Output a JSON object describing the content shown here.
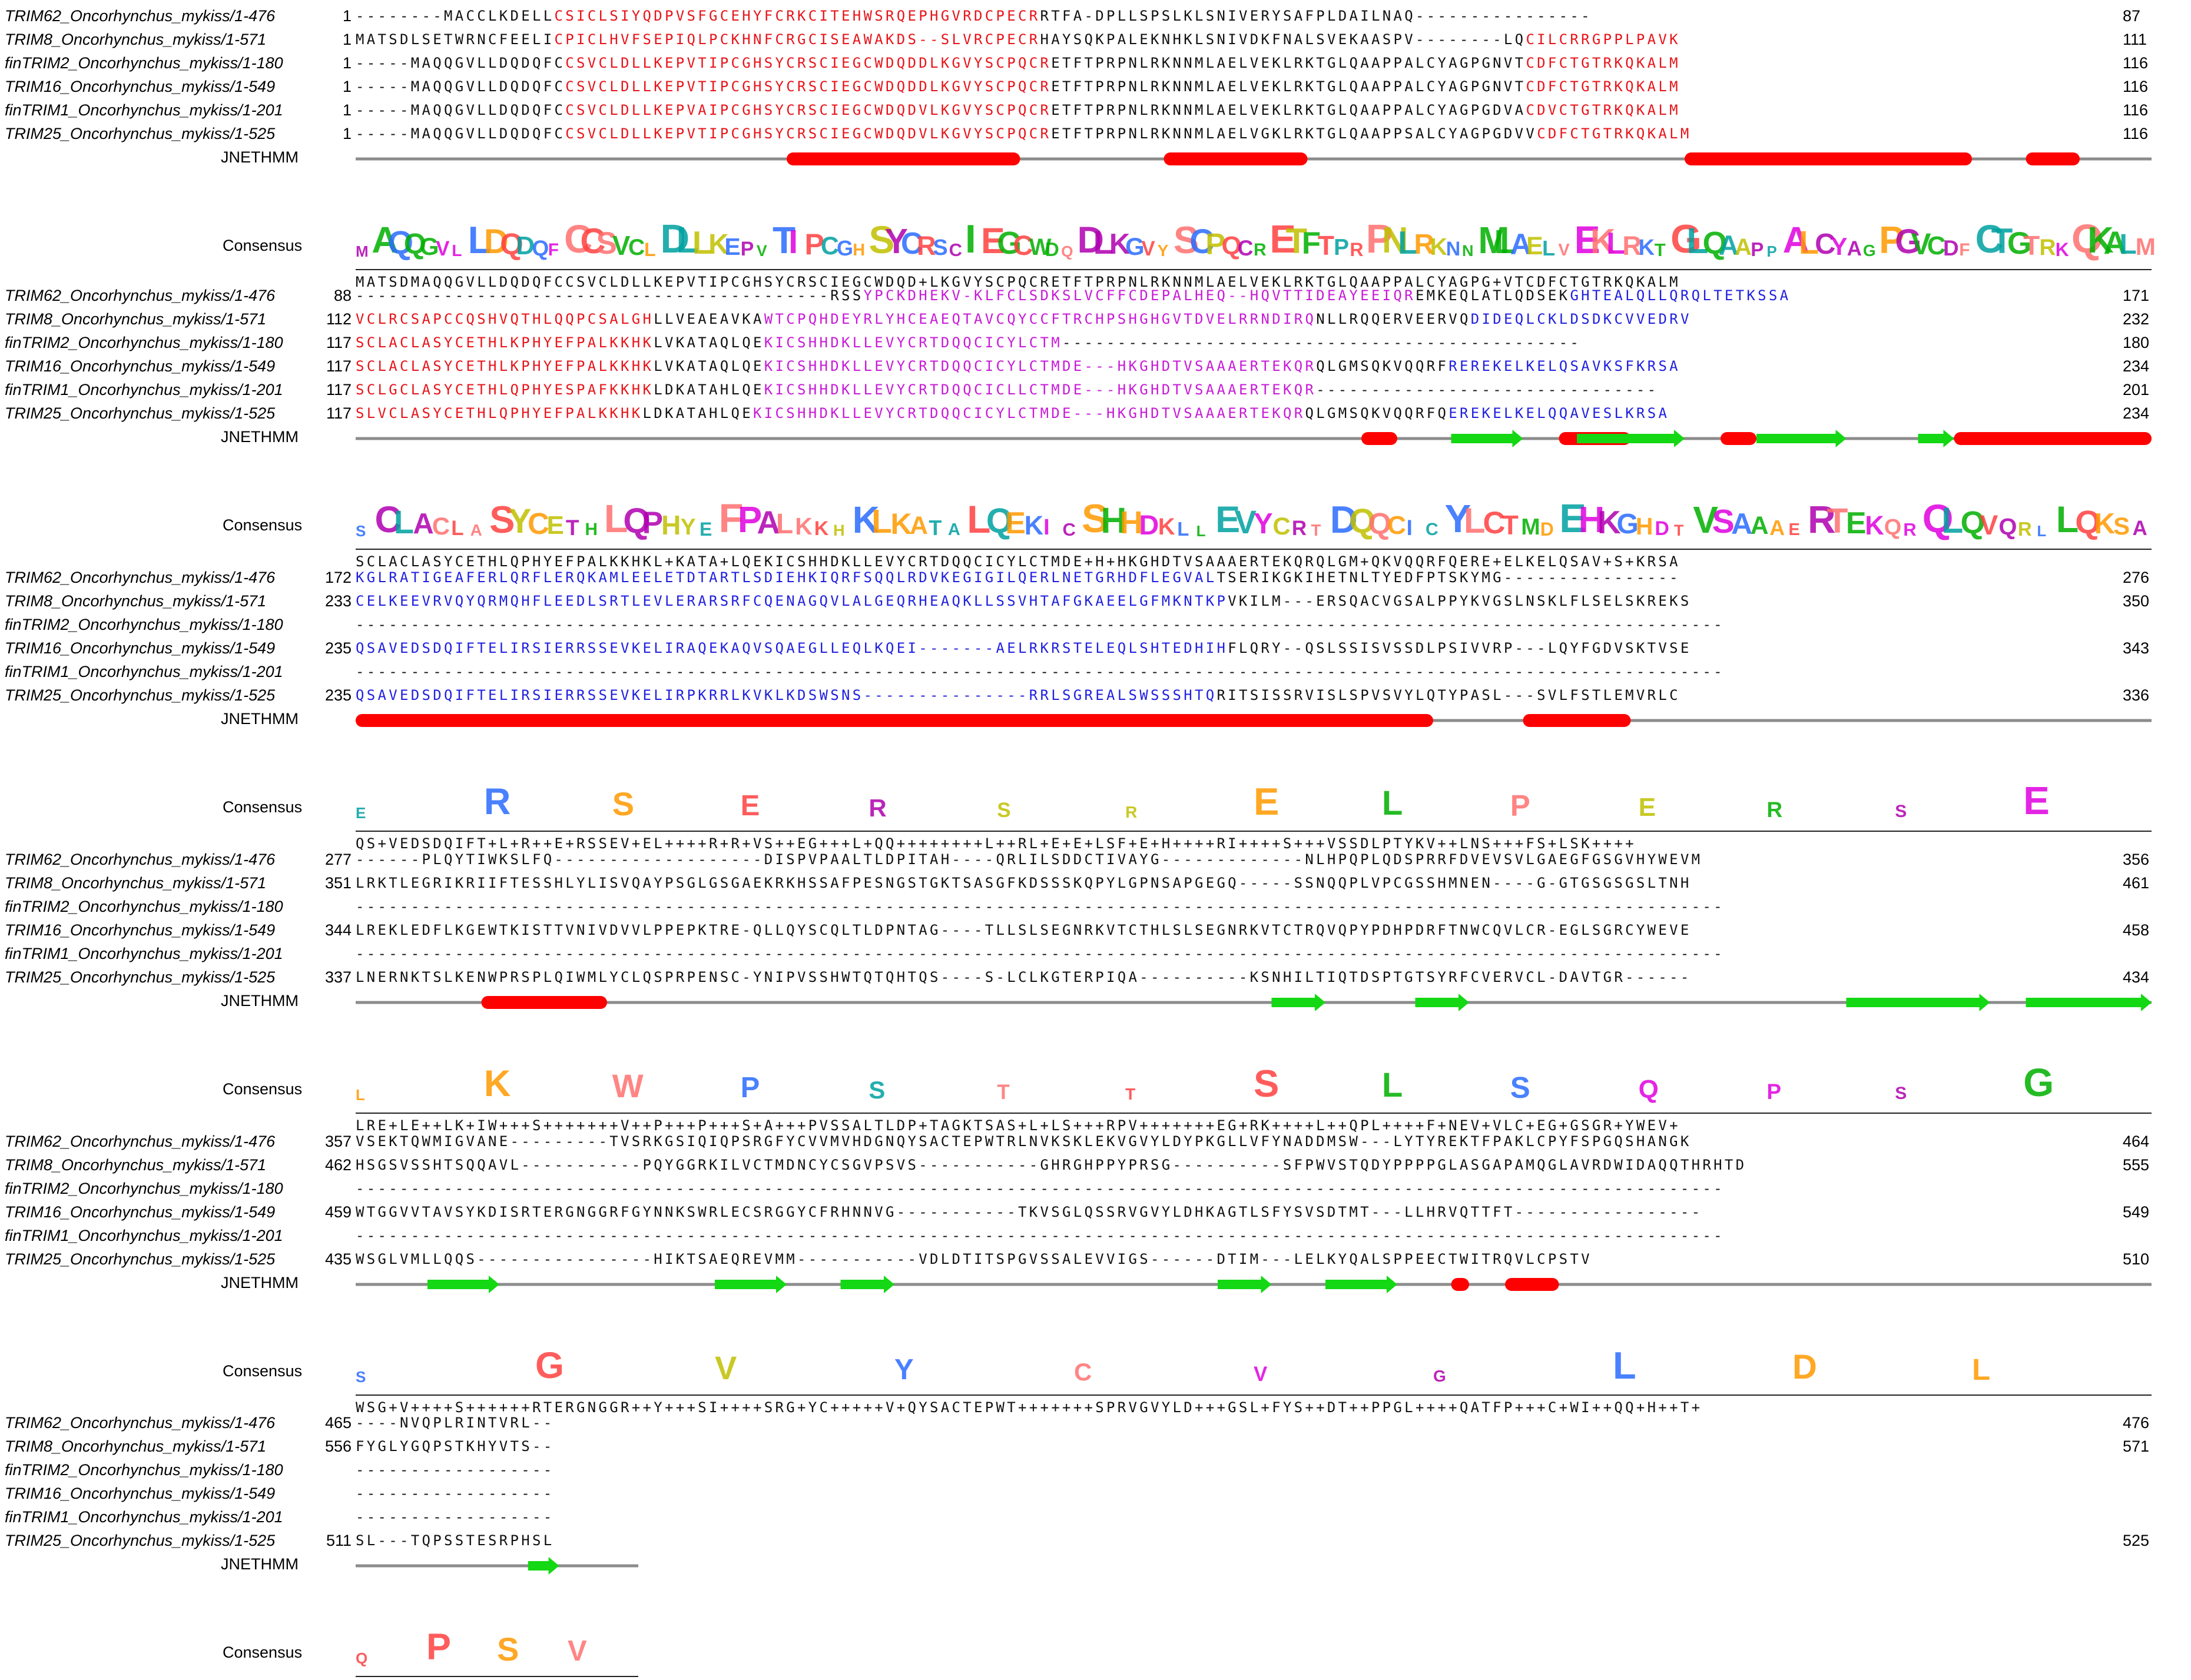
{
  "labels": {
    "prediction": "JNETHMM",
    "consensus": "Consensus"
  },
  "colors": {
    "zinc_finger": "#e8141a",
    "coiled_coil_box": "#c81ad8",
    "coiled_coil": "#2020e0",
    "default": "#111111",
    "helix": "#ff0000",
    "strand": "#13d813",
    "line": "#8c8c8c"
  },
  "blocks": [
    {
      "rows": [
        {
          "name": "TRIM62_Oncorhynchus_mykiss/1-476",
          "start": "1",
          "end": "87",
          "segs": [
            {
              "t": "--------MACCLKDELL",
              "c": "default"
            },
            {
              "t": "CSICLSIYQDPVSFGCEHYFCRKCITEHWSRQEPHGVRDCPECR",
              "c": "zinc_finger"
            },
            {
              "t": "RTFA-DPLLSPSLKLSNIVERYSAFPLDAILNAQ----------------",
              "c": "default"
            }
          ]
        },
        {
          "name": "TRIM8_Oncorhynchus_mykiss/1-571",
          "start": "1",
          "end": "111",
          "segs": [
            {
              "t": "MATSDLSETWRNCFEELI",
              "c": "default"
            },
            {
              "t": "CPICLHVFSEPIQLPCKHNFCRGCISEAWAKDS--SLVRCPECR",
              "c": "zinc_finger"
            },
            {
              "t": "HAYSQKPALEKNHKLSNIVDKFNALSVEKAASPV--------LQ",
              "c": "default"
            },
            {
              "t": "CILCRRGPPLPAVK",
              "c": "zinc_finger"
            }
          ]
        },
        {
          "name": "finTRIM2_Oncorhynchus_mykiss/1-180",
          "start": "1",
          "end": "116",
          "segs": [
            {
              "t": "-----MAQQGVLLDQDQFC",
              "c": "default"
            },
            {
              "t": "CSVCLDLLKEPVTIPCGHSYCRSCIEGCWDQDDLKGVYSCPQCR",
              "c": "zinc_finger"
            },
            {
              "t": "ETFTPRPNLRKNNMLAELVEKLRKTGLQAAPPALCYAGPGNVT",
              "c": "default"
            },
            {
              "t": "CDFCTGTRKQKALM",
              "c": "zinc_finger"
            }
          ]
        },
        {
          "name": "TRIM16_Oncorhynchus_mykiss/1-549",
          "start": "1",
          "end": "116",
          "segs": [
            {
              "t": "-----MAQQGVLLDQDQFC",
              "c": "default"
            },
            {
              "t": "CSVCLDLLKEPVTIPCGHSYCRSCIEGCWDQDDLKGVYSCPQCR",
              "c": "zinc_finger"
            },
            {
              "t": "ETFTPRPNLRKNNMLAELVEKLRKTGLQAAPPALCYAGPGNVT",
              "c": "default"
            },
            {
              "t": "CDFCTGTRKQKALM",
              "c": "zinc_finger"
            }
          ]
        },
        {
          "name": "finTRIM1_Oncorhynchus_mykiss/1-201",
          "start": "1",
          "end": "116",
          "segs": [
            {
              "t": "-----MAQQGVLLDQDQFC",
              "c": "default"
            },
            {
              "t": "CSVCLDLLKEPVAIPCGHSYCRSCIEGCWDQDVLKGVYSCPQCR",
              "c": "zinc_finger"
            },
            {
              "t": "ETFTPRPNLRKNNMLAELVEKLRKTGLQAAPPALCYAGPGDVA",
              "c": "default"
            },
            {
              "t": "CDVCTGTRKQKALM",
              "c": "zinc_finger"
            }
          ]
        },
        {
          "name": "TRIM25_Oncorhynchus_mykiss/1-525",
          "start": "1",
          "end": "116",
          "segs": [
            {
              "t": "-----MAQQGVLLDQDQFC",
              "c": "default"
            },
            {
              "t": "CSVCLDLLKEPVTIPCGHSYCRSCIEGCWDQDVLKGVYSCPQCR",
              "c": "zinc_finger"
            },
            {
              "t": "ETFTPRPNLRKNNMLAELVGKLRKTGLQAAPPSALCYAGPGDVV",
              "c": "default"
            },
            {
              "t": "CDFCTGTRKQKALM",
              "c": "zinc_finger"
            }
          ]
        }
      ],
      "consensus_seq": "MATSDMAQQGVLLDQDQFCCSVCLDLLKEPVTIPCGHSYCRSCIEGCWDQD+LKGVYSCPQCRETFTPRPNLRKNNMLAELVEKLRKTGLQAAPPALCYAGPG+VTCDFCTGTRKQKALM",
      "logo": "MAQQGVLLDQDQFCCSVCLDLLKEPVTIPCGHSYCRSCIEGCWDQDLKGVYSCPQCRETFTPRPNLRKNNMLAELVEKLRKTGLQAAPPALCYAGPGVCDFCTGTRKQKALM",
      "helices": [
        [
          0.24,
          0.37
        ],
        [
          0.45,
          0.53
        ],
        [
          0.74,
          0.9
        ],
        [
          0.93,
          0.96
        ]
      ],
      "strands": []
    },
    {
      "rows": [
        {
          "name": "TRIM62_Oncorhynchus_mykiss/1-476",
          "start": "88",
          "end": "171",
          "segs": [
            {
              "t": "-------------------------------------------RSS",
              "c": "default"
            },
            {
              "t": "YPCKDHEKV-KLFCLSDKSLVCFFCDEPALHEQ--HQVTTIDEAYEEIQR",
              "c": "coiled_coil_box"
            },
            {
              "t": "EMKEQLATLQDSEK",
              "c": "default"
            },
            {
              "t": "GHTEALQLLQRQLTETKSSA",
              "c": "coiled_coil"
            }
          ]
        },
        {
          "name": "TRIM8_Oncorhynchus_mykiss/1-571",
          "start": "112",
          "end": "232",
          "segs": [
            {
              "t": "VCLRCSAPCCQSHVQTHLQQPCSALGH",
              "c": "zinc_finger"
            },
            {
              "t": "LLVEAEAVKA",
              "c": "default"
            },
            {
              "t": "WTCPQHDEYRLYHCEAEQTAVCQYCCFTRCHPSHGHGVTDVELRRNDIRQ",
              "c": "coiled_coil_box"
            },
            {
              "t": "NLLRQQERVEERVQ",
              "c": "default"
            },
            {
              "t": "DIDEQLCKLDSDKCVVEDRV",
              "c": "coiled_coil"
            }
          ]
        },
        {
          "name": "finTRIM2_Oncorhynchus_mykiss/1-180",
          "start": "117",
          "end": "180",
          "segs": [
            {
              "t": "SCLACLASYCETHLKPHYEFPALKKHK",
              "c": "zinc_finger"
            },
            {
              "t": "LVKATAQLQE",
              "c": "default"
            },
            {
              "t": "KICSHHDKLLEVYCRTDQQCICYLCTM",
              "c": "coiled_coil_box"
            },
            {
              "t": "-----------------------------------------------",
              "c": "default"
            }
          ]
        },
        {
          "name": "TRIM16_Oncorhynchus_mykiss/1-549",
          "start": "117",
          "end": "234",
          "segs": [
            {
              "t": "SCLACLASYCETHLKPHYEFPALKKHK",
              "c": "zinc_finger"
            },
            {
              "t": "LVKATAQLQE",
              "c": "default"
            },
            {
              "t": "KICSHHDKLLEVYCRTDQQCICYLCTMDE---HKGHDTVSAAAERTEKQR",
              "c": "coiled_coil_box"
            },
            {
              "t": "QLGMSQKVQQRF",
              "c": "default"
            },
            {
              "t": "REREKELKELQSAVKSFKRSA",
              "c": "coiled_coil"
            }
          ]
        },
        {
          "name": "finTRIM1_Oncorhynchus_mykiss/1-201",
          "start": "117",
          "end": "201",
          "segs": [
            {
              "t": "SCLGCLASYCETHLQPHYESPAFKKHK",
              "c": "zinc_finger"
            },
            {
              "t": "LDKATAHLQE",
              "c": "default"
            },
            {
              "t": "KICSHHDKLLEVYCRTDQQCICLLCTMDE---HKGHDTVSAAAERTEKQR",
              "c": "coiled_coil_box"
            },
            {
              "t": "-------------------------------",
              "c": "default"
            }
          ]
        },
        {
          "name": "TRIM25_Oncorhynchus_mykiss/1-525",
          "start": "117",
          "end": "234",
          "segs": [
            {
              "t": "SLVCLASYCETHLQPHYEFPALKKHK",
              "c": "zinc_finger"
            },
            {
              "t": "LDKATAHLQE",
              "c": "default"
            },
            {
              "t": "KICSHHDKLLEVYCRTDQQCICYLCTMDE---HKGHDTVSAAAERTEKQR",
              "c": "coiled_coil_box"
            },
            {
              "t": "QLGMSQKVQQRFQ",
              "c": "default"
            },
            {
              "t": "EREKELKELQQAVESLKRSA",
              "c": "coiled_coil"
            }
          ]
        }
      ],
      "consensus_seq": "SCLACLASYCETHLQPHYEFPALKKHKL+KATA+LQEKICSHHDKLLEVYCRTDQQCICYLCTMDE+H+HKGHDTVSAAAERTEKQRQLGM+QKVQQRFQERE+ELKELQSAV+S+KRSA",
      "logo": "SCLACLASYCETHLQPHYEFPALKKHKLKATALQEKICSHHDKLLEVYCRTDQQCICYLCTMDEHKGHDTVSAAAERTEKQRQLQVQRLLQKSA",
      "helices": [
        [
          0.56,
          0.58
        ],
        [
          0.67,
          0.71
        ],
        [
          0.76,
          0.78
        ],
        [
          0.89,
          1.0
        ]
      ],
      "strands": [
        [
          0.61,
          0.65
        ],
        [
          0.68,
          0.74
        ],
        [
          0.78,
          0.83
        ],
        [
          0.87,
          0.89
        ]
      ]
    },
    {
      "rows": [
        {
          "name": "TRIM62_Oncorhynchus_mykiss/1-476",
          "start": "172",
          "end": "276",
          "segs": [
            {
              "t": "KGLRATIGEAFERLQRFLERQKAMLEELETDTARTLSDIEHKIQRFSQQLRDVKEGIGILQERLNETGRHDFLEGVAL",
              "c": "coiled_coil"
            },
            {
              "t": "TSERIKGKIHETNLTYEDFPTSKYMG----------------",
              "c": "default"
            }
          ]
        },
        {
          "name": "TRIM8_Oncorhynchus_mykiss/1-571",
          "start": "233",
          "end": "350",
          "segs": [
            {
              "t": "CELKEEVRVQYQRMQHFLEEDLSRTLEVLERARSRFCQENAGQVLALGEQRHEAQKLLSSVHTAFGKAEELGFMKNTKP",
              "c": "coiled_coil"
            },
            {
              "t": "VKILM---ERSQACVGSALPPYKVGSLNSKLFLSELSKREKS",
              "c": "default"
            }
          ]
        },
        {
          "name": "finTRIM2_Oncorhynchus_mykiss/1-180",
          "start": "",
          "end": "",
          "segs": [
            {
              "t": "----------------------------------------------------------------------------------------------------------------------------",
              "c": "default"
            }
          ]
        },
        {
          "name": "TRIM16_Oncorhynchus_mykiss/1-549",
          "start": "235",
          "end": "343",
          "segs": [
            {
              "t": "QSAVEDSDQIFTELIRSIERRSSEVKELIRAQEKAQVSQAEGLLEQLKQEI-------AELRKRSTELEQLSHTEDHIH",
              "c": "coiled_coil"
            },
            {
              "t": "FLQRY--QSLSSISVSSDLPSIVVRP---LQYFGDVSKTVSE",
              "c": "default"
            }
          ]
        },
        {
          "name": "finTRIM1_Oncorhynchus_mykiss/1-201",
          "start": "",
          "end": "",
          "segs": [
            {
              "t": "----------------------------------------------------------------------------------------------------------------------------",
              "c": "default"
            }
          ]
        },
        {
          "name": "TRIM25_Oncorhynchus_mykiss/1-525",
          "start": "235",
          "end": "336",
          "segs": [
            {
              "t": "QSAVEDSDQIFTELIRSIERRSSEVKELIRPKRRLKVKLKDSWSNS---------------RRLSGREALSWSSSHTQ",
              "c": "coiled_coil"
            },
            {
              "t": "RITSISSRVISLSPVSVYLQTYPASL---SVLFSTLEMVRLC",
              "c": "default"
            }
          ]
        }
      ],
      "consensus_seq": "QS+VEDSDQIFT+L+R++E+RSSEV+EL++++R+R+VS++EG+++L+QQ++++++++L++RL+E+E+LSF+E+H++++RI++++S+++VSSDLPTYKV++LNS+++FS+LSK++++",
      "logo": "ERSERSRELPERSE",
      "helices": [
        [
          0.0,
          0.6
        ],
        [
          0.65,
          0.71
        ]
      ],
      "strands": []
    },
    {
      "rows": [
        {
          "name": "TRIM62_Oncorhynchus_mykiss/1-476",
          "start": "277",
          "end": "356",
          "segs": [
            {
              "t": "------PLQYTIWKSLFQ-------------------DISPVPAALTLDPITAH----QRLILSDDCTIVAYG-------------NLHPQPLQDSPRRFDVEVSVLGAEGFGSGVHYWEVM",
              "c": "default"
            }
          ]
        },
        {
          "name": "TRIM8_Oncorhynchus_mykiss/1-571",
          "start": "351",
          "end": "461",
          "segs": [
            {
              "t": "LRKTLEGRIKRIIFTESSHLYLISVQAYPSGLGSGAEKRKHSSAFPESNGSTGKTSASGFKDSSSKQPYLGPNSAPGEGQ-----SSNQQPLVPCGSSHMNEN----G-GTGSGSGSLTNH",
              "c": "default"
            }
          ]
        },
        {
          "name": "finTRIM2_Oncorhynchus_mykiss/1-180",
          "start": "",
          "end": "",
          "segs": [
            {
              "t": "----------------------------------------------------------------------------------------------------------------------------",
              "c": "default"
            }
          ]
        },
        {
          "name": "TRIM16_Oncorhynchus_mykiss/1-549",
          "start": "344",
          "end": "458",
          "segs": [
            {
              "t": "LREKLEDFLKGEWTKISTTVNIVDVVLPPEPKTRE-QLLQYSCQLTLDPNTAG----TLLSLSEGNRKVTCTHLSLSEGNRKVTCTRQVQPYPDHPDRFTNWCQVLCR-EGLSGRCYWEVE",
              "c": "default"
            }
          ]
        },
        {
          "name": "finTRIM1_Oncorhynchus_mykiss/1-201",
          "start": "",
          "end": "",
          "segs": [
            {
              "t": "----------------------------------------------------------------------------------------------------------------------------",
              "c": "default"
            }
          ]
        },
        {
          "name": "TRIM25_Oncorhynchus_mykiss/1-525",
          "start": "337",
          "end": "434",
          "segs": [
            {
              "t": "LNERNKTSLKENWPRSPLQIWMLYCLQSPRPENSC-YNIPVSSHWTQTQHTQS----S-LCLKGTERPIQA----------KSNHILTIQTDSPTGTSYRFCVERVCL-DAVTGR------",
              "c": "default"
            }
          ]
        }
      ],
      "consensus_seq": "LRE+LE++LK+IW+++S+++++++V++P+++P+++S+A+++PVSSALTLDP+TAGKTSAS+L+LS+++RPV+++++++EG+RK++++L++QPL++++F+NEV+VLC+EG+GSGR+YWEV+",
      "logo": "LKWPSTTSLSQPSG",
      "helices": [
        [
          0.07,
          0.14
        ]
      ],
      "strands": [
        [
          0.51,
          0.54
        ],
        [
          0.59,
          0.62
        ],
        [
          0.83,
          0.91
        ],
        [
          0.93,
          1.0
        ]
      ]
    },
    {
      "rows": [
        {
          "name": "TRIM62_Oncorhynchus_mykiss/1-476",
          "start": "357",
          "end": "464",
          "segs": [
            {
              "t": "VSEKTQWMIGVANE---------TVSRKGSIQIQPSRGFYCVVMVHDGNQYSACTEPWTRLNVKSKLEKVGVYLDYPKGLLVFYNADDMSW---LYTYREKTFPAKLCPYFSPGQSHANGK",
              "c": "default"
            }
          ]
        },
        {
          "name": "TRIM8_Oncorhynchus_mykiss/1-571",
          "start": "462",
          "end": "555",
          "segs": [
            {
              "t": "HSGSVSSHTSQQAVL-----------PQYGGRKILVCTMDNCYCSGVPSVS-----------GHRGHPPYPRSG----------SFPWVSTQDYPPPPGLASGAPAMQGLAVRDWIDAQQTHRHTD",
              "c": "default"
            }
          ]
        },
        {
          "name": "finTRIM2_Oncorhynchus_mykiss/1-180",
          "start": "",
          "end": "",
          "segs": [
            {
              "t": "----------------------------------------------------------------------------------------------------------------------------",
              "c": "default"
            }
          ]
        },
        {
          "name": "TRIM16_Oncorhynchus_mykiss/1-549",
          "start": "459",
          "end": "549",
          "segs": [
            {
              "t": "WTGGVVTAVSYKDISRTERGNGGRFGYNNKSWRLECSRGGYCFRHNNVG-----------TKVSGLQSSRVGVYLDHKAGTLSFYSVSDTMT---LLHRVQTTFT-----------------",
              "c": "default"
            }
          ]
        },
        {
          "name": "finTRIM1_Oncorhynchus_mykiss/1-201",
          "start": "",
          "end": "",
          "segs": [
            {
              "t": "----------------------------------------------------------------------------------------------------------------------------",
              "c": "default"
            }
          ]
        },
        {
          "name": "TRIM25_Oncorhynchus_mykiss/1-525",
          "start": "435",
          "end": "510",
          "segs": [
            {
              "t": "WSGLVMLLQQS----------------HIKTSAEQREVMM-----------VDLDTITSPGVSSALEVVIGS------DTIM---LELKYQALSPPEECTWITRQVLCPSTV",
              "c": "default"
            }
          ]
        }
      ],
      "consensus_seq": "WSG+V++++S++++++RTERGNGGR++Y+++SI++++SRG+YC+++++V+QYSACTEPWT+++++++SPRVGVYLD+++GSL+FYS++DT++PPGL++++QATFP+++C+WI++QQ+H++T+",
      "logo": "SGVYCVGLDL",
      "helices": [
        [
          0.61,
          0.62
        ],
        [
          0.64,
          0.67
        ]
      ],
      "strands": [
        [
          0.04,
          0.08
        ],
        [
          0.2,
          0.24
        ],
        [
          0.27,
          0.3
        ],
        [
          0.48,
          0.51
        ],
        [
          0.54,
          0.58
        ]
      ]
    },
    {
      "rows": [
        {
          "name": "TRIM62_Oncorhynchus_mykiss/1-476",
          "start": "465",
          "end": "476",
          "segs": [
            {
              "t": "----NVQPLRINTVRL--",
              "c": "default"
            }
          ]
        },
        {
          "name": "TRIM8_Oncorhynchus_mykiss/1-571",
          "start": "556",
          "end": "571",
          "segs": [
            {
              "t": "FYGLYGQPSTKHYVTS--",
              "c": "default"
            }
          ]
        },
        {
          "name": "finTRIM2_Oncorhynchus_mykiss/1-180",
          "start": "",
          "end": "",
          "segs": [
            {
              "t": "------------------",
              "c": "default"
            }
          ]
        },
        {
          "name": "TRIM16_Oncorhynchus_mykiss/1-549",
          "start": "",
          "end": "",
          "segs": [
            {
              "t": "------------------",
              "c": "default"
            }
          ]
        },
        {
          "name": "finTRIM1_Oncorhynchus_mykiss/1-201",
          "start": "",
          "end": "",
          "segs": [
            {
              "t": "------------------",
              "c": "default"
            }
          ]
        },
        {
          "name": "TRIM25_Oncorhynchus_mykiss/1-525",
          "start": "511",
          "end": "525",
          "segs": [
            {
              "t": "SL---TQPSSTESRPHSL",
              "c": "default"
            }
          ]
        }
      ],
      "consensus_seq": "++GL++QPS++++V++SL",
      "logo": "QPSV",
      "helices": [],
      "strands": [
        [
          0.61,
          0.72
        ]
      ]
    }
  ]
}
